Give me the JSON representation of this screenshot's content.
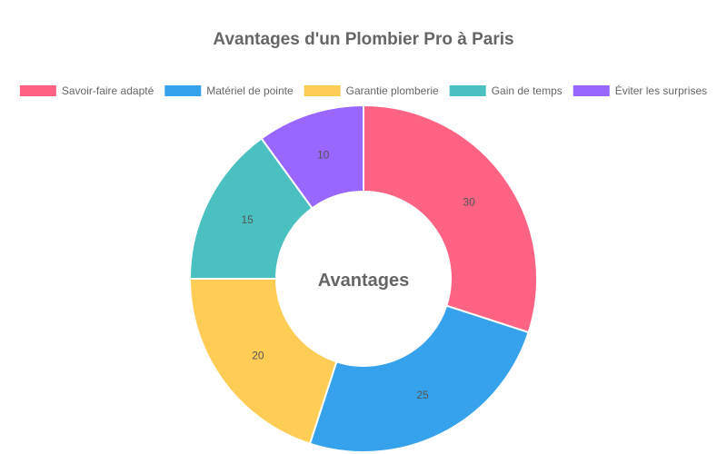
{
  "chart_data": {
    "type": "pie",
    "variant": "doughnut",
    "title": "Avantages d'un Plombier Pro à Paris",
    "center_label": "Avantages",
    "legend_position": "top",
    "categories": [
      "Savoir-faire adapté",
      "Matériel de pointe",
      "Garantie plomberie",
      "Gain de temps",
      "Éviter les surprises"
    ],
    "values": [
      30,
      25,
      20,
      15,
      10
    ],
    "colors": [
      "#ff6384",
      "#36a2eb",
      "#ffcd56",
      "#4bc0c0",
      "#9966ff"
    ]
  }
}
